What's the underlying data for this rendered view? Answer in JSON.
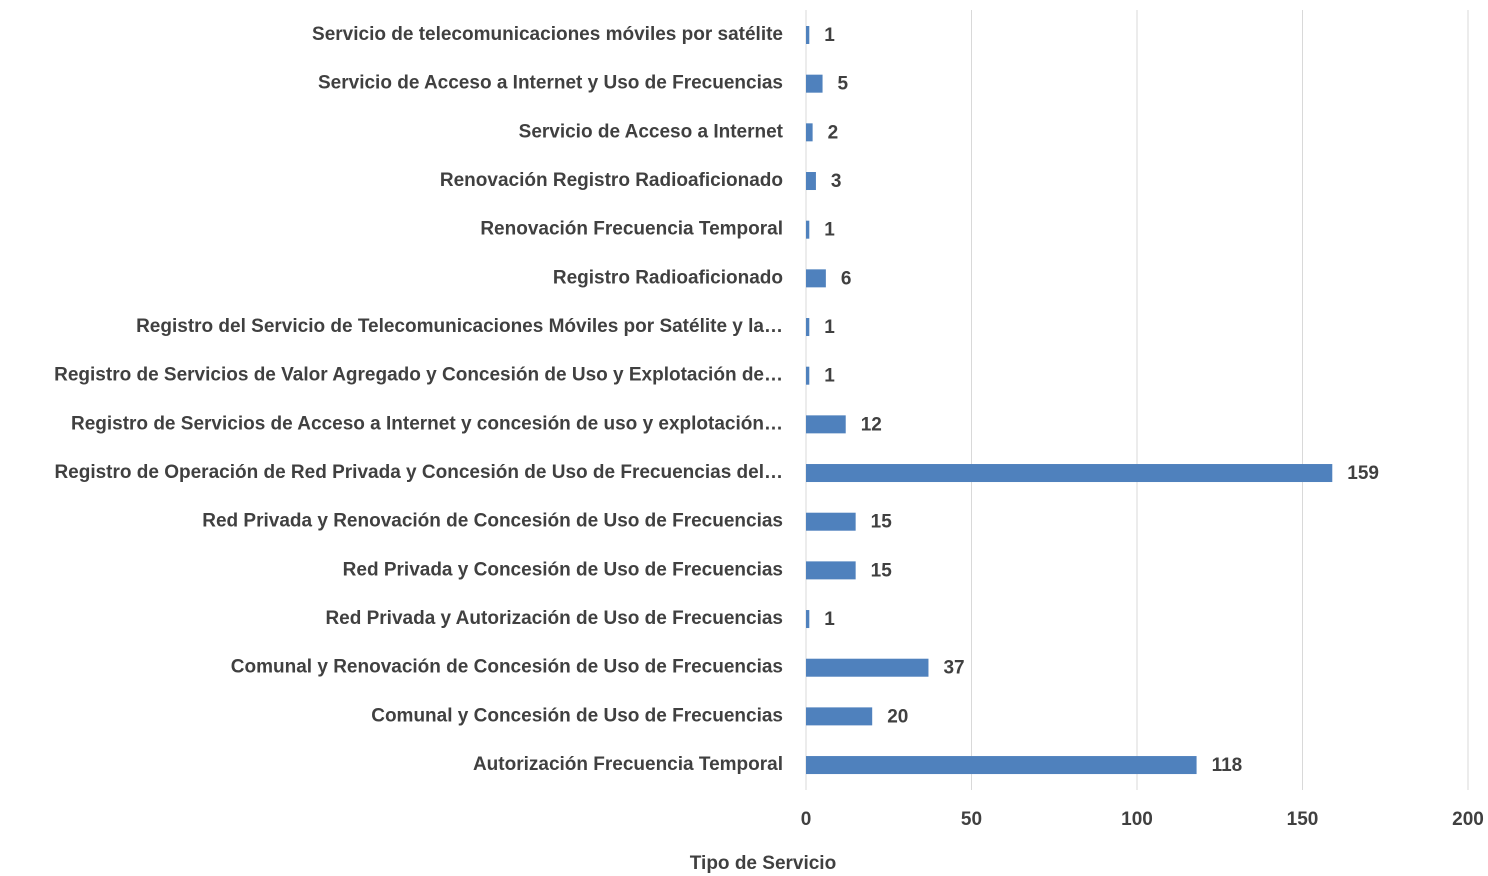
{
  "chart_data": {
    "type": "bar",
    "orientation": "horizontal",
    "x_axis_title": "Tipo de Servicio",
    "categories": [
      "Servicio de telecomunicaciones móviles por satélite",
      "Servicio de Acceso a Internet y Uso de Frecuencias",
      "Servicio de Acceso a Internet",
      "Renovación Registro Radioaficionado",
      "Renovación Frecuencia Temporal",
      "Registro Radioaficionado",
      "Registro del Servicio de Telecomunicaciones Móviles por Satélite y la…",
      "Registro de Servicios de Valor Agregado y Concesión de Uso y Explotación de…",
      "Registro de Servicios de Acceso a Internet y concesión de uso y explotación…",
      "Registro de Operación de Red Privada y  Concesión de Uso de Frecuencias del…",
      "Red Privada y Renovación de Concesión de Uso de Frecuencias",
      "Red Privada y Concesión de Uso de Frecuencias",
      "Red Privada y Autorización de Uso de Frecuencias",
      "Comunal y Renovación de Concesión de Uso de Frecuencias",
      "Comunal y Concesión de Uso de Frecuencias",
      "Autorización Frecuencia Temporal"
    ],
    "values": [
      1,
      5,
      2,
      3,
      1,
      6,
      1,
      1,
      12,
      159,
      15,
      15,
      1,
      37,
      20,
      118
    ],
    "color": "#4f81bd",
    "xlim": [
      0,
      200
    ],
    "xticks": [
      0,
      50,
      100,
      150,
      200
    ],
    "grid": true
  }
}
